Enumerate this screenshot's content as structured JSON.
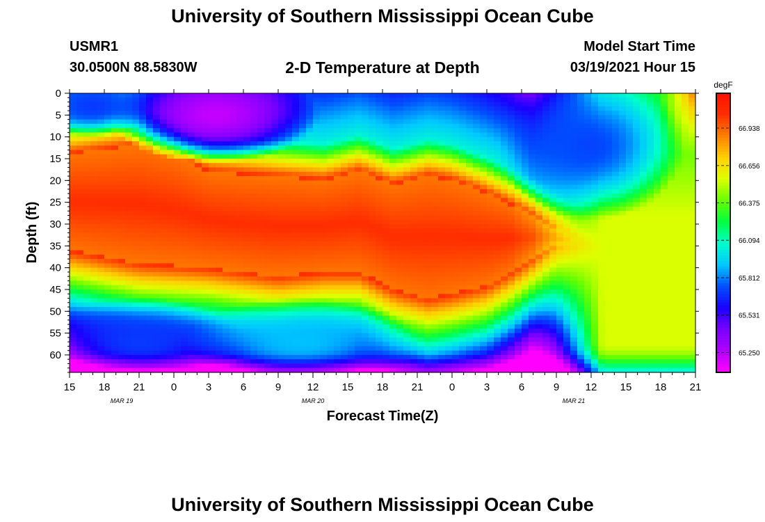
{
  "page": {
    "title_top": "University of Southern Mississippi Ocean Cube",
    "title_bottom": "University of Southern Mississippi Ocean Cube",
    "station_id": "USMR1",
    "coordinates": "30.0500N 88.5830W",
    "plot_title": "2-D Temperature at Depth",
    "model_start_label": "Model Start Time",
    "model_start_value": "03/19/2021 Hour 15"
  },
  "colors": {
    "palette": [
      "#ff00ff",
      "#b000ff",
      "#7a00ff",
      "#1a00ff",
      "#0050ff",
      "#00c8ff",
      "#00ffcc",
      "#00ff40",
      "#66ff00",
      "#ddff00",
      "#ffd000",
      "#ff8000",
      "#ff3000",
      "#ff1000"
    ]
  },
  "chart_data": {
    "type": "heatmap",
    "title": "2-D Temperature at Depth",
    "xlabel": "Forecast Time(Z)",
    "ylabel": "Depth (ft)",
    "x_unit": "hours since 03/19/2021 15Z",
    "xlim": [
      0,
      54
    ],
    "ylim": [
      0,
      64
    ],
    "y_inverted": true,
    "x_ticks": [
      {
        "h": 0,
        "label": "15"
      },
      {
        "h": 3,
        "label": "18"
      },
      {
        "h": 6,
        "label": "21"
      },
      {
        "h": 9,
        "label": "0"
      },
      {
        "h": 12,
        "label": "3"
      },
      {
        "h": 15,
        "label": "6"
      },
      {
        "h": 18,
        "label": "9"
      },
      {
        "h": 21,
        "label": "12"
      },
      {
        "h": 24,
        "label": "15"
      },
      {
        "h": 27,
        "label": "18"
      },
      {
        "h": 30,
        "label": "21"
      },
      {
        "h": 33,
        "label": "0"
      },
      {
        "h": 36,
        "label": "3"
      },
      {
        "h": 39,
        "label": "6"
      },
      {
        "h": 42,
        "label": "9"
      },
      {
        "h": 45,
        "label": "12"
      },
      {
        "h": 48,
        "label": "15"
      },
      {
        "h": 51,
        "label": "18"
      },
      {
        "h": 54,
        "label": "21"
      }
    ],
    "date_labels": [
      {
        "h": 4.5,
        "label": "MAR 19"
      },
      {
        "h": 21,
        "label": "MAR 20"
      },
      {
        "h": 43.5,
        "label": "MAR 21"
      }
    ],
    "y_ticks": [
      0,
      5,
      10,
      15,
      20,
      25,
      30,
      35,
      40,
      45,
      50,
      55,
      60
    ],
    "colorbar": {
      "unit": "degF",
      "min": 65.1,
      "max": 67.2,
      "tick_values": [
        66.938,
        66.656,
        66.375,
        66.094,
        65.812,
        65.531,
        65.25
      ],
      "tick_labels": [
        "66.938",
        "66.656",
        "66.375",
        "66.094",
        "65.812",
        "65.531",
        "65.250"
      ]
    },
    "features": {
      "warm_core_top": [
        [
          0,
          14
        ],
        [
          6,
          12
        ],
        [
          9,
          14
        ],
        [
          12,
          18
        ],
        [
          17,
          19
        ],
        [
          22,
          20
        ],
        [
          25,
          18
        ],
        [
          28,
          21
        ],
        [
          31,
          19
        ],
        [
          33,
          20
        ],
        [
          36,
          23
        ],
        [
          40,
          28
        ],
        [
          44,
          34
        ],
        [
          48,
          37
        ],
        [
          54,
          38
        ]
      ],
      "warm_core_bottom": [
        [
          0,
          36
        ],
        [
          6,
          39
        ],
        [
          12,
          40
        ],
        [
          18,
          42
        ],
        [
          22,
          41
        ],
        [
          25,
          41
        ],
        [
          28,
          45
        ],
        [
          31,
          47
        ],
        [
          33,
          46
        ],
        [
          36,
          44
        ],
        [
          40,
          38
        ],
        [
          42,
          35
        ]
      ],
      "surface_cool_regions": [
        {
          "h": 12.5,
          "d": 5,
          "rx": 9,
          "ry": 11,
          "temp": 65.22
        },
        {
          "h": 2,
          "d": 3,
          "rx": 5,
          "ry": 7,
          "temp": 65.7
        },
        {
          "h": 45,
          "d": 12,
          "rx": 8,
          "ry": 17,
          "temp": 65.72
        }
      ],
      "deep_cool_regions": [
        {
          "h": 6,
          "d": 57,
          "rx": 9,
          "ry": 10,
          "temp": 65.7
        },
        {
          "h": 20,
          "d": 57,
          "rx": 10,
          "ry": 10,
          "temp": 65.9
        }
      ]
    }
  }
}
